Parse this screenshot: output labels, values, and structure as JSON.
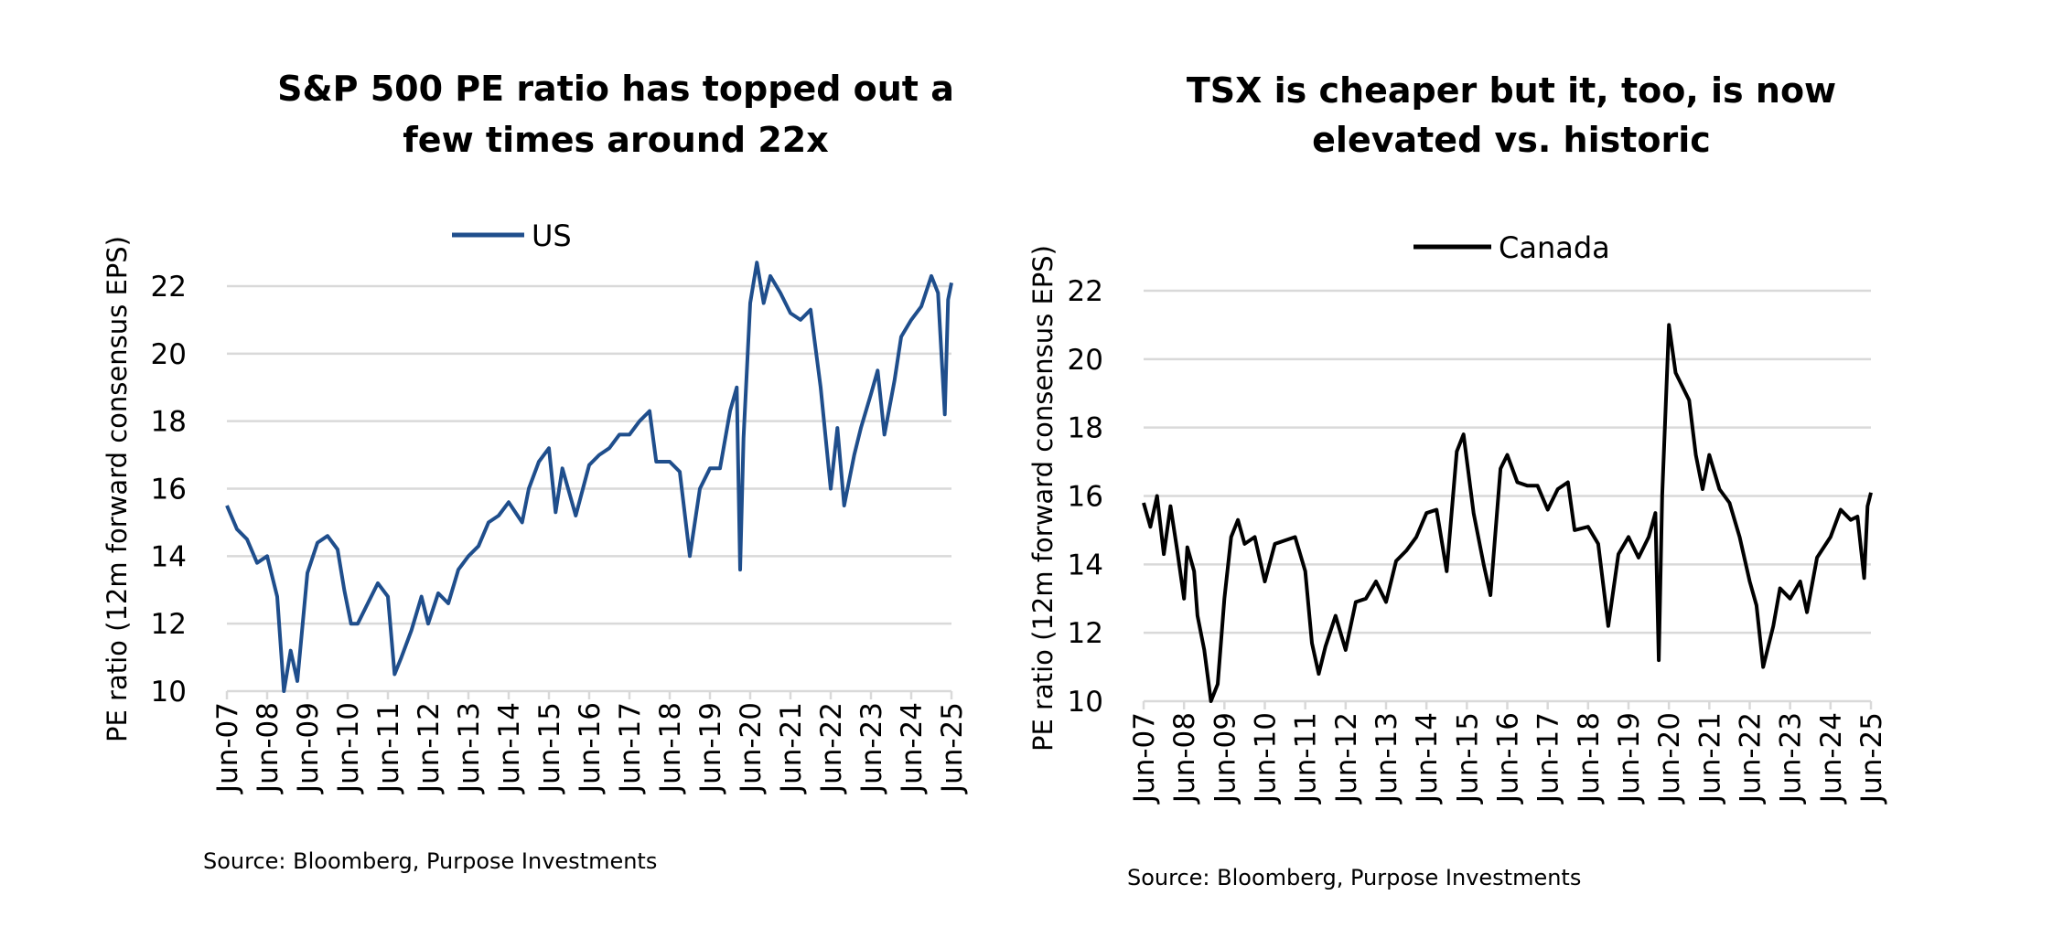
{
  "chart_data": [
    {
      "type": "line",
      "title_lines": [
        "S&P 500 PE ratio has topped out a",
        "few times around 22x"
      ],
      "ylabel": "PE ratio  (12m forward consensus EPS)",
      "xlabel": "",
      "ylim": [
        10,
        22
      ],
      "yticks": [
        "10",
        "12",
        "14",
        "16",
        "18",
        "20",
        "22"
      ],
      "xticks": [
        "Jun-07",
        "Jun-08",
        "Jun-09",
        "Jun-10",
        "Jun-11",
        "Jun-12",
        "Jun-13",
        "Jun-14",
        "Jun-15",
        "Jun-16",
        "Jun-17",
        "Jun-18",
        "Jun-19",
        "Jun-20",
        "Jun-21",
        "Jun-22",
        "Jun-23",
        "Jun-24",
        "Jun-25"
      ],
      "grid": true,
      "legend_position": "top-center",
      "source": "Source: Bloomberg, Purpose Investments",
      "series": [
        {
          "name": "US",
          "color": "#1f4e8c",
          "points": [
            [
              "2007-06",
              15.5
            ],
            [
              "2007-09",
              14.8
            ],
            [
              "2007-12",
              14.5
            ],
            [
              "2008-03",
              13.8
            ],
            [
              "2008-06",
              14.0
            ],
            [
              "2008-09",
              12.8
            ],
            [
              "2008-11",
              10.0
            ],
            [
              "2009-01",
              11.2
            ],
            [
              "2009-03",
              10.3
            ],
            [
              "2009-06",
              13.5
            ],
            [
              "2009-09",
              14.4
            ],
            [
              "2009-12",
              14.6
            ],
            [
              "2010-03",
              14.2
            ],
            [
              "2010-05",
              13.0
            ],
            [
              "2010-07",
              12.0
            ],
            [
              "2010-09",
              12.0
            ],
            [
              "2010-12",
              12.6
            ],
            [
              "2011-03",
              13.2
            ],
            [
              "2011-06",
              12.8
            ],
            [
              "2011-08",
              10.5
            ],
            [
              "2011-10",
              11.0
            ],
            [
              "2012-01",
              11.8
            ],
            [
              "2012-04",
              12.8
            ],
            [
              "2012-06",
              12.0
            ],
            [
              "2012-09",
              12.9
            ],
            [
              "2012-12",
              12.6
            ],
            [
              "2013-03",
              13.6
            ],
            [
              "2013-06",
              14.0
            ],
            [
              "2013-09",
              14.3
            ],
            [
              "2013-12",
              15.0
            ],
            [
              "2014-03",
              15.2
            ],
            [
              "2014-06",
              15.6
            ],
            [
              "2014-10",
              15.0
            ],
            [
              "2014-12",
              16.0
            ],
            [
              "2015-03",
              16.8
            ],
            [
              "2015-06",
              17.2
            ],
            [
              "2015-08",
              15.3
            ],
            [
              "2015-10",
              16.6
            ],
            [
              "2016-02",
              15.2
            ],
            [
              "2016-06",
              16.7
            ],
            [
              "2016-09",
              17.0
            ],
            [
              "2016-12",
              17.2
            ],
            [
              "2017-03",
              17.6
            ],
            [
              "2017-06",
              17.6
            ],
            [
              "2017-09",
              18.0
            ],
            [
              "2017-12",
              18.3
            ],
            [
              "2018-02",
              16.8
            ],
            [
              "2018-06",
              16.8
            ],
            [
              "2018-09",
              16.5
            ],
            [
              "2018-12",
              14.0
            ],
            [
              "2019-03",
              16.0
            ],
            [
              "2019-06",
              16.6
            ],
            [
              "2019-09",
              16.6
            ],
            [
              "2019-12",
              18.3
            ],
            [
              "2020-02",
              19.0
            ],
            [
              "2020-03",
              13.6
            ],
            [
              "2020-04",
              17.5
            ],
            [
              "2020-06",
              21.5
            ],
            [
              "2020-08",
              22.7
            ],
            [
              "2020-10",
              21.5
            ],
            [
              "2020-12",
              22.3
            ],
            [
              "2021-03",
              21.8
            ],
            [
              "2021-06",
              21.2
            ],
            [
              "2021-09",
              21.0
            ],
            [
              "2021-12",
              21.3
            ],
            [
              "2022-03",
              19.0
            ],
            [
              "2022-06",
              16.0
            ],
            [
              "2022-08",
              17.8
            ],
            [
              "2022-10",
              15.5
            ],
            [
              "2023-01",
              17.0
            ],
            [
              "2023-03",
              17.8
            ],
            [
              "2023-06",
              18.8
            ],
            [
              "2023-08",
              19.5
            ],
            [
              "2023-10",
              17.6
            ],
            [
              "2024-01",
              19.2
            ],
            [
              "2024-03",
              20.5
            ],
            [
              "2024-06",
              21.0
            ],
            [
              "2024-09",
              21.4
            ],
            [
              "2024-12",
              22.3
            ],
            [
              "2025-02",
              21.8
            ],
            [
              "2025-04",
              18.2
            ],
            [
              "2025-05",
              21.6
            ],
            [
              "2025-06",
              22.1
            ]
          ]
        }
      ]
    },
    {
      "type": "line",
      "title_lines": [
        "TSX is cheaper but it, too, is now",
        "elevated vs. historic"
      ],
      "ylabel": "PE ratio  (12m forward consensus EPS)",
      "xlabel": "",
      "ylim": [
        10,
        22
      ],
      "yticks": [
        "10",
        "12",
        "14",
        "16",
        "18",
        "20",
        "22"
      ],
      "xticks": [
        "Jun-07",
        "Jun-08",
        "Jun-09",
        "Jun-10",
        "Jun-11",
        "Jun-12",
        "Jun-13",
        "Jun-14",
        "Jun-15",
        "Jun-16",
        "Jun-17",
        "Jun-18",
        "Jun-19",
        "Jun-20",
        "Jun-21",
        "Jun-22",
        "Jun-23",
        "Jun-24",
        "Jun-25"
      ],
      "grid": true,
      "legend_position": "top-center",
      "source": "Source: Bloomberg, Purpose Investments",
      "series": [
        {
          "name": "Canada",
          "color": "#000000",
          "points": [
            [
              "2007-06",
              15.8
            ],
            [
              "2007-08",
              15.1
            ],
            [
              "2007-10",
              16.0
            ],
            [
              "2007-12",
              14.3
            ],
            [
              "2008-02",
              15.7
            ],
            [
              "2008-04",
              14.4
            ],
            [
              "2008-06",
              13.0
            ],
            [
              "2008-07",
              14.5
            ],
            [
              "2008-09",
              13.8
            ],
            [
              "2008-10",
              12.5
            ],
            [
              "2008-12",
              11.5
            ],
            [
              "2009-02",
              10.0
            ],
            [
              "2009-04",
              10.5
            ],
            [
              "2009-06",
              13.0
            ],
            [
              "2009-08",
              14.8
            ],
            [
              "2009-10",
              15.3
            ],
            [
              "2009-12",
              14.6
            ],
            [
              "2010-03",
              14.8
            ],
            [
              "2010-06",
              13.5
            ],
            [
              "2010-09",
              14.6
            ],
            [
              "2010-12",
              14.7
            ],
            [
              "2011-03",
              14.8
            ],
            [
              "2011-06",
              13.8
            ],
            [
              "2011-08",
              11.7
            ],
            [
              "2011-10",
              10.8
            ],
            [
              "2011-12",
              11.6
            ],
            [
              "2012-03",
              12.5
            ],
            [
              "2012-06",
              11.5
            ],
            [
              "2012-09",
              12.9
            ],
            [
              "2012-12",
              13.0
            ],
            [
              "2013-03",
              13.5
            ],
            [
              "2013-06",
              12.9
            ],
            [
              "2013-09",
              14.1
            ],
            [
              "2013-12",
              14.4
            ],
            [
              "2014-03",
              14.8
            ],
            [
              "2014-06",
              15.5
            ],
            [
              "2014-09",
              15.6
            ],
            [
              "2014-12",
              13.8
            ],
            [
              "2015-03",
              17.3
            ],
            [
              "2015-05",
              17.8
            ],
            [
              "2015-08",
              15.5
            ],
            [
              "2015-11",
              14.0
            ],
            [
              "2016-01",
              13.1
            ],
            [
              "2016-04",
              16.8
            ],
            [
              "2016-06",
              17.2
            ],
            [
              "2016-09",
              16.4
            ],
            [
              "2016-12",
              16.3
            ],
            [
              "2017-03",
              16.3
            ],
            [
              "2017-06",
              15.6
            ],
            [
              "2017-09",
              16.2
            ],
            [
              "2017-12",
              16.4
            ],
            [
              "2018-02",
              15.0
            ],
            [
              "2018-06",
              15.1
            ],
            [
              "2018-09",
              14.6
            ],
            [
              "2018-12",
              12.2
            ],
            [
              "2019-03",
              14.3
            ],
            [
              "2019-06",
              14.8
            ],
            [
              "2019-09",
              14.2
            ],
            [
              "2019-12",
              14.8
            ],
            [
              "2020-02",
              15.5
            ],
            [
              "2020-03",
              11.2
            ],
            [
              "2020-04",
              16.0
            ],
            [
              "2020-06",
              21.0
            ],
            [
              "2020-08",
              19.6
            ],
            [
              "2020-12",
              18.8
            ],
            [
              "2021-02",
              17.2
            ],
            [
              "2021-04",
              16.2
            ],
            [
              "2021-06",
              17.2
            ],
            [
              "2021-09",
              16.2
            ],
            [
              "2021-12",
              15.8
            ],
            [
              "2022-03",
              14.8
            ],
            [
              "2022-06",
              13.5
            ],
            [
              "2022-08",
              12.8
            ],
            [
              "2022-10",
              11.0
            ],
            [
              "2023-01",
              12.2
            ],
            [
              "2023-03",
              13.3
            ],
            [
              "2023-06",
              13.0
            ],
            [
              "2023-09",
              13.5
            ],
            [
              "2023-11",
              12.6
            ],
            [
              "2024-02",
              14.2
            ],
            [
              "2024-06",
              14.8
            ],
            [
              "2024-09",
              15.6
            ],
            [
              "2024-12",
              15.3
            ],
            [
              "2025-02",
              15.4
            ],
            [
              "2025-04",
              13.6
            ],
            [
              "2025-05",
              15.7
            ],
            [
              "2025-06",
              16.1
            ]
          ]
        }
      ]
    }
  ]
}
